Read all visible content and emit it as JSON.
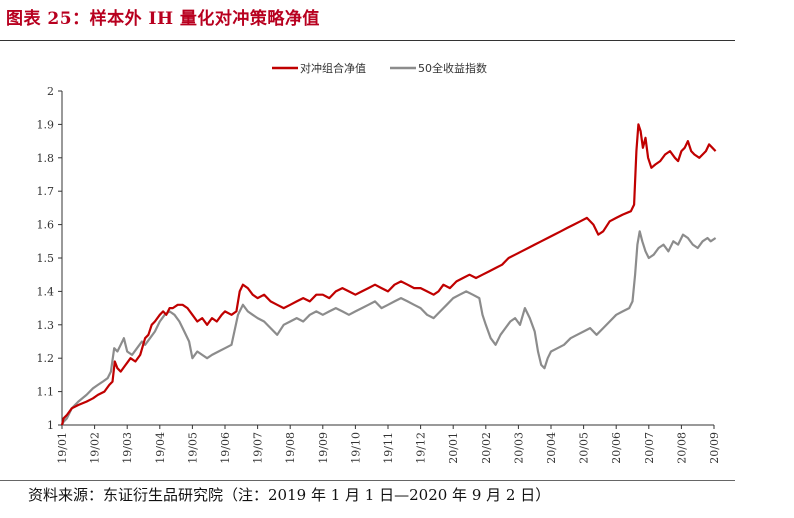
{
  "figure": {
    "title": "图表 25：样本外 IH 量化对冲策略净值",
    "source": "资料来源：东证衍生品研究院（注：2019 年 1 月 1 日—2020 年 9 月 2 日）"
  },
  "colors": {
    "title": "#b8001f",
    "series_red": "#c00000",
    "series_gray": "#8c8c8c"
  },
  "chart_data": {
    "type": "line",
    "xlabel": "",
    "ylabel": "",
    "ylim": [
      1,
      2
    ],
    "yticks": [
      "1",
      "1.1",
      "1.2",
      "1.3",
      "1.4",
      "1.5",
      "1.6",
      "1.7",
      "1.8",
      "1.9",
      "2"
    ],
    "xticks": [
      "19/01",
      "19/02",
      "19/03",
      "19/04",
      "19/05",
      "19/06",
      "19/07",
      "19/08",
      "19/09",
      "19/10",
      "19/11",
      "19/12",
      "20/01",
      "20/02",
      "20/03",
      "20/04",
      "20/05",
      "20/06",
      "20/07",
      "20/08",
      "20/09"
    ],
    "grid": false,
    "legend": "top-center",
    "series": [
      {
        "name": "对冲组合净值",
        "color": "#c00000",
        "points": [
          [
            0.0,
            1.0
          ],
          [
            0.05,
            1.02
          ],
          [
            0.15,
            1.03
          ],
          [
            0.3,
            1.05
          ],
          [
            0.5,
            1.06
          ],
          [
            0.75,
            1.07
          ],
          [
            0.95,
            1.08
          ],
          [
            1.1,
            1.09
          ],
          [
            1.3,
            1.1
          ],
          [
            1.45,
            1.12
          ],
          [
            1.55,
            1.13
          ],
          [
            1.62,
            1.19
          ],
          [
            1.7,
            1.17
          ],
          [
            1.8,
            1.16
          ],
          [
            1.95,
            1.18
          ],
          [
            2.1,
            1.2
          ],
          [
            2.25,
            1.19
          ],
          [
            2.4,
            1.21
          ],
          [
            2.55,
            1.26
          ],
          [
            2.65,
            1.27
          ],
          [
            2.75,
            1.3
          ],
          [
            2.85,
            1.31
          ],
          [
            3.0,
            1.33
          ],
          [
            3.1,
            1.34
          ],
          [
            3.2,
            1.33
          ],
          [
            3.3,
            1.35
          ],
          [
            3.4,
            1.35
          ],
          [
            3.55,
            1.36
          ],
          [
            3.7,
            1.36
          ],
          [
            3.85,
            1.35
          ],
          [
            4.0,
            1.33
          ],
          [
            4.15,
            1.31
          ],
          [
            4.3,
            1.32
          ],
          [
            4.45,
            1.3
          ],
          [
            4.6,
            1.32
          ],
          [
            4.75,
            1.31
          ],
          [
            4.9,
            1.33
          ],
          [
            5.0,
            1.34
          ],
          [
            5.2,
            1.33
          ],
          [
            5.35,
            1.34
          ],
          [
            5.45,
            1.4
          ],
          [
            5.55,
            1.42
          ],
          [
            5.7,
            1.41
          ],
          [
            5.85,
            1.39
          ],
          [
            6.0,
            1.38
          ],
          [
            6.2,
            1.39
          ],
          [
            6.4,
            1.37
          ],
          [
            6.6,
            1.36
          ],
          [
            6.8,
            1.35
          ],
          [
            7.0,
            1.36
          ],
          [
            7.2,
            1.37
          ],
          [
            7.4,
            1.38
          ],
          [
            7.6,
            1.37
          ],
          [
            7.8,
            1.39
          ],
          [
            8.0,
            1.39
          ],
          [
            8.2,
            1.38
          ],
          [
            8.4,
            1.4
          ],
          [
            8.6,
            1.41
          ],
          [
            8.8,
            1.4
          ],
          [
            9.0,
            1.39
          ],
          [
            9.2,
            1.4
          ],
          [
            9.4,
            1.41
          ],
          [
            9.6,
            1.42
          ],
          [
            9.8,
            1.41
          ],
          [
            10.0,
            1.4
          ],
          [
            10.2,
            1.42
          ],
          [
            10.4,
            1.43
          ],
          [
            10.6,
            1.42
          ],
          [
            10.8,
            1.41
          ],
          [
            11.0,
            1.41
          ],
          [
            11.2,
            1.4
          ],
          [
            11.4,
            1.39
          ],
          [
            11.55,
            1.4
          ],
          [
            11.7,
            1.42
          ],
          [
            11.9,
            1.41
          ],
          [
            12.1,
            1.43
          ],
          [
            12.3,
            1.44
          ],
          [
            12.5,
            1.45
          ],
          [
            12.7,
            1.44
          ],
          [
            12.9,
            1.45
          ],
          [
            13.1,
            1.46
          ],
          [
            13.3,
            1.47
          ],
          [
            13.5,
            1.48
          ],
          [
            13.7,
            1.5
          ],
          [
            13.9,
            1.51
          ],
          [
            14.1,
            1.52
          ],
          [
            14.3,
            1.53
          ],
          [
            14.5,
            1.54
          ],
          [
            14.7,
            1.55
          ],
          [
            14.9,
            1.56
          ],
          [
            15.1,
            1.57
          ],
          [
            15.3,
            1.58
          ],
          [
            15.5,
            1.59
          ],
          [
            15.7,
            1.6
          ],
          [
            15.9,
            1.61
          ],
          [
            16.1,
            1.62
          ],
          [
            16.3,
            1.6
          ],
          [
            16.45,
            1.57
          ],
          [
            16.6,
            1.58
          ],
          [
            16.8,
            1.61
          ],
          [
            17.0,
            1.62
          ],
          [
            17.2,
            1.63
          ],
          [
            17.45,
            1.64
          ],
          [
            17.55,
            1.66
          ],
          [
            17.62,
            1.82
          ],
          [
            17.68,
            1.9
          ],
          [
            17.75,
            1.88
          ],
          [
            17.82,
            1.83
          ],
          [
            17.9,
            1.86
          ],
          [
            17.98,
            1.8
          ],
          [
            18.08,
            1.77
          ],
          [
            18.2,
            1.78
          ],
          [
            18.35,
            1.79
          ],
          [
            18.5,
            1.81
          ],
          [
            18.65,
            1.82
          ],
          [
            18.8,
            1.8
          ],
          [
            18.9,
            1.79
          ],
          [
            19.0,
            1.82
          ],
          [
            19.1,
            1.83
          ],
          [
            19.2,
            1.85
          ],
          [
            19.3,
            1.82
          ],
          [
            19.4,
            1.81
          ],
          [
            19.55,
            1.8
          ],
          [
            19.65,
            1.81
          ],
          [
            19.75,
            1.82
          ],
          [
            19.85,
            1.84
          ],
          [
            19.95,
            1.83
          ],
          [
            20.05,
            1.82
          ]
        ]
      },
      {
        "name": "50全收益指数",
        "color": "#8c8c8c",
        "points": [
          [
            0.0,
            1.0
          ],
          [
            0.05,
            1.01
          ],
          [
            0.15,
            1.02
          ],
          [
            0.3,
            1.05
          ],
          [
            0.5,
            1.07
          ],
          [
            0.75,
            1.09
          ],
          [
            0.95,
            1.11
          ],
          [
            1.1,
            1.12
          ],
          [
            1.25,
            1.13
          ],
          [
            1.4,
            1.14
          ],
          [
            1.5,
            1.16
          ],
          [
            1.6,
            1.23
          ],
          [
            1.7,
            1.22
          ],
          [
            1.8,
            1.24
          ],
          [
            1.9,
            1.26
          ],
          [
            2.0,
            1.22
          ],
          [
            2.15,
            1.21
          ],
          [
            2.3,
            1.23
          ],
          [
            2.45,
            1.25
          ],
          [
            2.55,
            1.24
          ],
          [
            2.7,
            1.26
          ],
          [
            2.85,
            1.28
          ],
          [
            3.0,
            1.31
          ],
          [
            3.15,
            1.33
          ],
          [
            3.3,
            1.34
          ],
          [
            3.45,
            1.33
          ],
          [
            3.6,
            1.31
          ],
          [
            3.75,
            1.28
          ],
          [
            3.9,
            1.25
          ],
          [
            4.0,
            1.2
          ],
          [
            4.15,
            1.22
          ],
          [
            4.3,
            1.21
          ],
          [
            4.45,
            1.2
          ],
          [
            4.6,
            1.21
          ],
          [
            4.8,
            1.22
          ],
          [
            5.0,
            1.23
          ],
          [
            5.2,
            1.24
          ],
          [
            5.4,
            1.33
          ],
          [
            5.55,
            1.36
          ],
          [
            5.7,
            1.34
          ],
          [
            5.85,
            1.33
          ],
          [
            6.0,
            1.32
          ],
          [
            6.2,
            1.31
          ],
          [
            6.4,
            1.29
          ],
          [
            6.6,
            1.27
          ],
          [
            6.8,
            1.3
          ],
          [
            7.0,
            1.31
          ],
          [
            7.2,
            1.32
          ],
          [
            7.4,
            1.31
          ],
          [
            7.6,
            1.33
          ],
          [
            7.8,
            1.34
          ],
          [
            8.0,
            1.33
          ],
          [
            8.2,
            1.34
          ],
          [
            8.4,
            1.35
          ],
          [
            8.6,
            1.34
          ],
          [
            8.8,
            1.33
          ],
          [
            9.0,
            1.34
          ],
          [
            9.2,
            1.35
          ],
          [
            9.4,
            1.36
          ],
          [
            9.6,
            1.37
          ],
          [
            9.8,
            1.35
          ],
          [
            10.0,
            1.36
          ],
          [
            10.2,
            1.37
          ],
          [
            10.4,
            1.38
          ],
          [
            10.6,
            1.37
          ],
          [
            10.8,
            1.36
          ],
          [
            11.0,
            1.35
          ],
          [
            11.2,
            1.33
          ],
          [
            11.4,
            1.32
          ],
          [
            11.6,
            1.34
          ],
          [
            11.8,
            1.36
          ],
          [
            12.0,
            1.38
          ],
          [
            12.2,
            1.39
          ],
          [
            12.4,
            1.4
          ],
          [
            12.6,
            1.39
          ],
          [
            12.8,
            1.38
          ],
          [
            12.9,
            1.33
          ],
          [
            13.0,
            1.3
          ],
          [
            13.15,
            1.26
          ],
          [
            13.3,
            1.24
          ],
          [
            13.45,
            1.27
          ],
          [
            13.6,
            1.29
          ],
          [
            13.75,
            1.31
          ],
          [
            13.9,
            1.32
          ],
          [
            14.05,
            1.3
          ],
          [
            14.2,
            1.35
          ],
          [
            14.35,
            1.32
          ],
          [
            14.5,
            1.28
          ],
          [
            14.6,
            1.22
          ],
          [
            14.7,
            1.18
          ],
          [
            14.8,
            1.17
          ],
          [
            14.9,
            1.2
          ],
          [
            15.0,
            1.22
          ],
          [
            15.2,
            1.23
          ],
          [
            15.4,
            1.24
          ],
          [
            15.6,
            1.26
          ],
          [
            15.8,
            1.27
          ],
          [
            16.0,
            1.28
          ],
          [
            16.2,
            1.29
          ],
          [
            16.4,
            1.27
          ],
          [
            16.6,
            1.29
          ],
          [
            16.8,
            1.31
          ],
          [
            17.0,
            1.33
          ],
          [
            17.2,
            1.34
          ],
          [
            17.4,
            1.35
          ],
          [
            17.5,
            1.37
          ],
          [
            17.58,
            1.45
          ],
          [
            17.65,
            1.54
          ],
          [
            17.72,
            1.58
          ],
          [
            17.8,
            1.55
          ],
          [
            17.9,
            1.52
          ],
          [
            18.0,
            1.5
          ],
          [
            18.15,
            1.51
          ],
          [
            18.3,
            1.53
          ],
          [
            18.45,
            1.54
          ],
          [
            18.6,
            1.52
          ],
          [
            18.75,
            1.55
          ],
          [
            18.9,
            1.54
          ],
          [
            19.05,
            1.57
          ],
          [
            19.2,
            1.56
          ],
          [
            19.35,
            1.54
          ],
          [
            19.5,
            1.53
          ],
          [
            19.65,
            1.55
          ],
          [
            19.8,
            1.56
          ],
          [
            19.9,
            1.55
          ],
          [
            20.05,
            1.56
          ]
        ]
      }
    ]
  }
}
